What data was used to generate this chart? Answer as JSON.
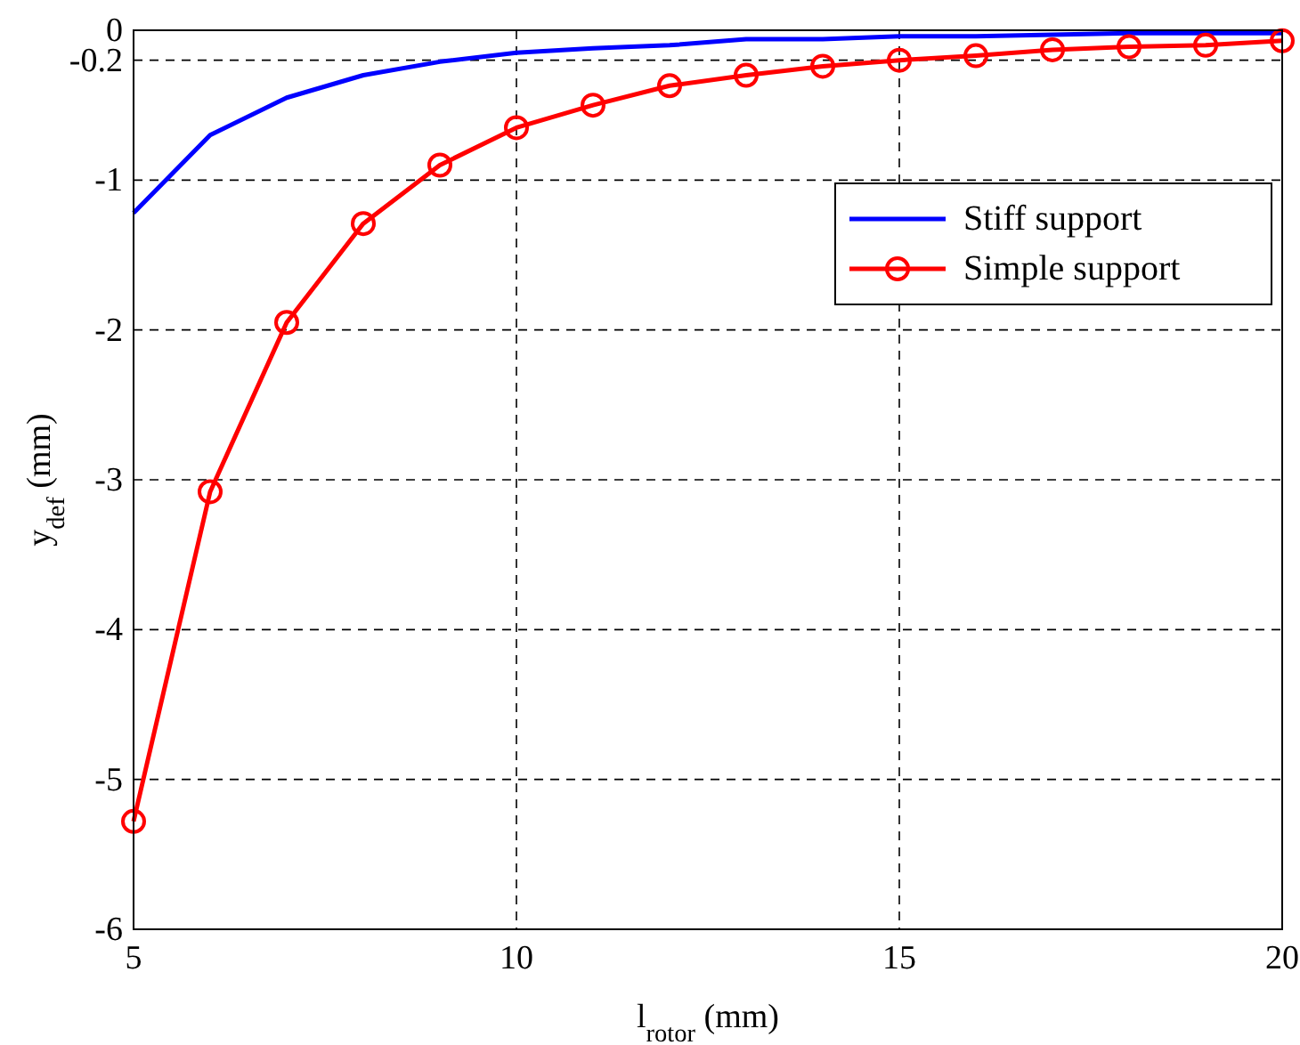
{
  "chart_data": {
    "type": "line",
    "xlabel": "l$_{rotor}$ (mm)",
    "ylabel": "y$_{def}$ (mm)",
    "x": [
      5,
      6,
      7,
      8,
      9,
      10,
      11,
      12,
      13,
      14,
      15,
      16,
      17,
      18,
      19,
      20
    ],
    "series": [
      {
        "name": "Stiff support",
        "color": "#0000ff",
        "marker": "none",
        "values": [
          -1.22,
          -0.7,
          -0.45,
          -0.3,
          -0.21,
          -0.15,
          -0.12,
          -0.1,
          -0.06,
          -0.06,
          -0.04,
          -0.04,
          -0.03,
          -0.02,
          -0.02,
          -0.02
        ]
      },
      {
        "name": "Simple support",
        "color": "#ff0000",
        "marker": "circle",
        "values": [
          -5.28,
          -3.08,
          -1.95,
          -1.29,
          -0.9,
          -0.65,
          -0.5,
          -0.37,
          -0.3,
          -0.24,
          -0.2,
          -0.17,
          -0.13,
          -0.11,
          -0.1,
          -0.07
        ]
      }
    ],
    "xlim": [
      5,
      20
    ],
    "xticks": [
      5,
      10,
      15,
      20
    ],
    "ylim": [
      -6,
      0
    ],
    "yticks": [
      -6,
      -5,
      -4,
      -3,
      -2,
      -1,
      -0.2,
      0
    ],
    "grid": true,
    "legend": "top right",
    "line_style": "solid"
  }
}
